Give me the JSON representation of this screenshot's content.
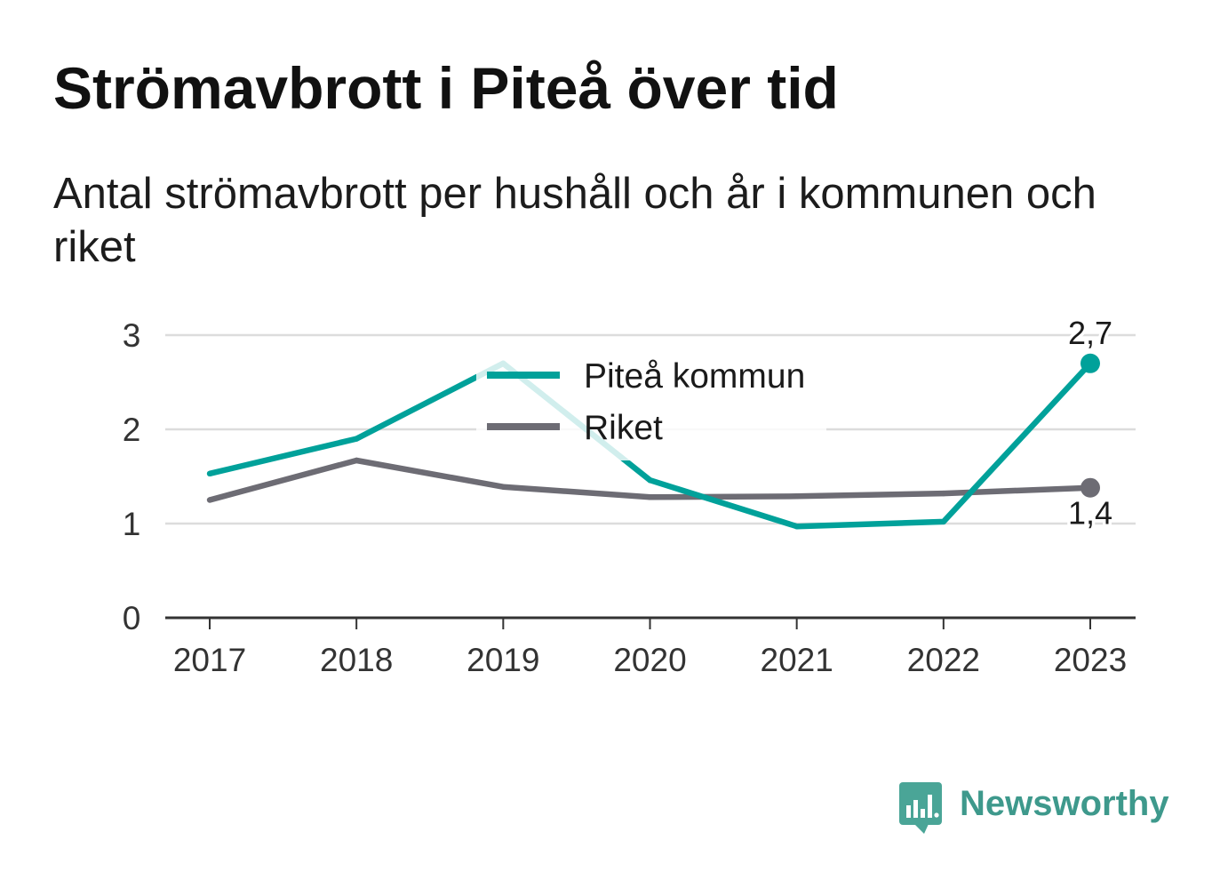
{
  "chart_data": {
    "type": "line",
    "title": "Strömavbrott i Piteå över tid",
    "subtitle": "Antal strömavbrott per hushåll och år i kommunen och riket",
    "xlabel": "",
    "ylabel": "",
    "x": [
      2017,
      2018,
      2019,
      2020,
      2021,
      2022,
      2023
    ],
    "ylim": [
      0,
      3
    ],
    "yticks": [
      0,
      1,
      2,
      3
    ],
    "grid": true,
    "legend_position": "top-center",
    "series": [
      {
        "name": "Piteå kommun",
        "color": "#00a19a",
        "marker": "last",
        "values": [
          1.53,
          1.9,
          2.7,
          1.46,
          0.97,
          1.02,
          2.7
        ]
      },
      {
        "name": "Riket",
        "color": "#6d6c74",
        "marker": "last",
        "values": [
          1.25,
          1.67,
          1.39,
          1.28,
          1.29,
          1.32,
          1.38
        ]
      }
    ],
    "annotations": [
      {
        "series": "Piteå kommun",
        "x": 2023,
        "label": "2,7",
        "position": "above"
      },
      {
        "series": "Riket",
        "x": 2023,
        "label": "1,4",
        "position": "below"
      }
    ]
  },
  "colors": {
    "gridline": "#dcdcdc",
    "axis": "#333333",
    "tick_text": "#333333",
    "label_text": "#1a1a1a"
  },
  "brand": {
    "name": "Newsworthy",
    "icon": "newsworthy-logo-icon",
    "color": "#3e998c",
    "icon_color": "#4aa597"
  }
}
